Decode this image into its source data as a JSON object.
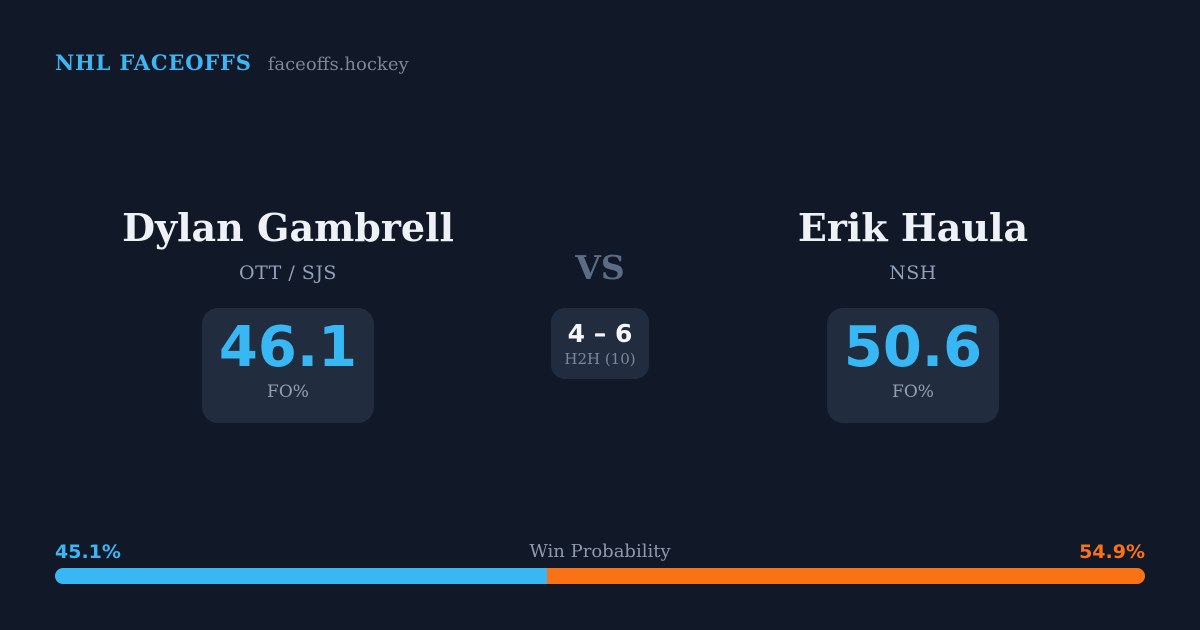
{
  "brand": {
    "title": "NHL FACEOFFS",
    "domain": "faceoffs.hockey"
  },
  "players": {
    "left": {
      "name": "Dylan Gambrell",
      "team": "OTT / SJS",
      "fo_value": "46.1",
      "fo_label": "FO%"
    },
    "right": {
      "name": "Erik Haula",
      "team": "NSH",
      "fo_value": "50.6",
      "fo_label": "FO%"
    }
  },
  "versus": {
    "label": "VS",
    "h2h_score": "4 – 6",
    "h2h_label": "H2H (10)"
  },
  "win_probability": {
    "title": "Win Probability",
    "left_pct_label": "45.1%",
    "right_pct_label": "54.9%",
    "left_pct": 45.1,
    "right_pct": 54.9
  },
  "colors": {
    "background": "#111827",
    "card": "#212d3e",
    "accent_blue": "#38b7f5",
    "accent_orange": "#f97316"
  }
}
